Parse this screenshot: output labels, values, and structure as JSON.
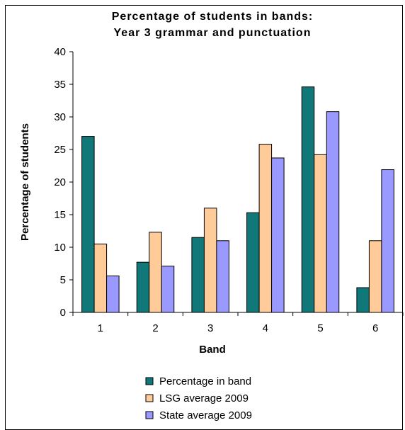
{
  "chart_data": {
    "type": "bar",
    "title_lines": [
      "Percentage of students in bands:",
      "Year 3 grammar and punctuation"
    ],
    "xlabel": "Band",
    "ylabel": "Percentage of students",
    "categories": [
      "1",
      "2",
      "3",
      "4",
      "5",
      "6"
    ],
    "ylim": [
      0,
      40
    ],
    "yticks": [
      "0",
      "5",
      "10",
      "15",
      "20",
      "25",
      "30",
      "35",
      "40"
    ],
    "grid": false,
    "legend_position": "bottom",
    "series": [
      {
        "name": "Percentage in band",
        "color": "#107878",
        "values": [
          27.0,
          7.7,
          11.5,
          15.3,
          34.6,
          3.8
        ]
      },
      {
        "name": "LSG average 2009",
        "color": "#FFCC99",
        "values": [
          10.5,
          12.3,
          16.0,
          25.8,
          24.2,
          11.0
        ]
      },
      {
        "name": "State average 2009",
        "color": "#9999FF",
        "values": [
          5.6,
          7.1,
          11.0,
          23.7,
          30.8,
          21.9
        ]
      }
    ]
  }
}
